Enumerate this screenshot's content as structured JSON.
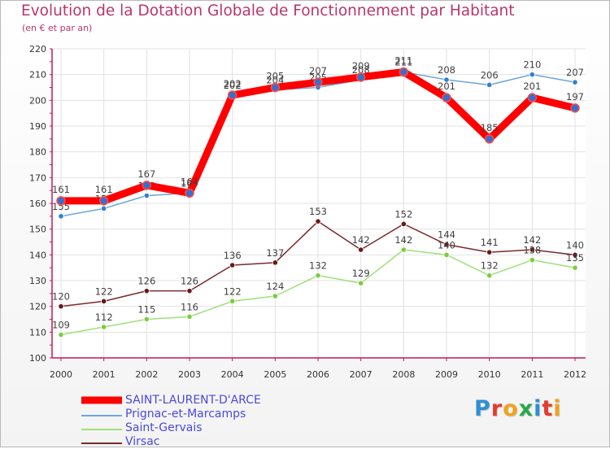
{
  "header": {
    "title": "Evolution de la Dotation Globale de Fonctionnement par Habitant",
    "subtitle": "(en € et par an)"
  },
  "logo": {
    "text": "Proxiti",
    "letters": [
      {
        "ch": "P",
        "color": "#2f8fd3"
      },
      {
        "ch": "r",
        "color": "#e63b2e"
      },
      {
        "ch": "o",
        "color": "#f0a21c"
      },
      {
        "ch": "x",
        "color": "#27a84a"
      },
      {
        "ch": "i",
        "color": "#2f8fd3"
      },
      {
        "ch": "t",
        "color": "#e63b2e"
      },
      {
        "ch": "i",
        "color": "#f0a21c"
      }
    ]
  },
  "colors": {
    "title": "#b9356c",
    "axis": "#c2185b",
    "grid": "#e2e2e2",
    "legend_text": "#4a4adb"
  },
  "chart_data": {
    "type": "line",
    "title": "Evolution de la Dotation Globale de Fonctionnement par Habitant",
    "subtitle": "(en € et par an)",
    "xlabel": "",
    "ylabel": "",
    "x": [
      "2000",
      "2001",
      "2002",
      "2003",
      "2004",
      "2005",
      "2006",
      "2007",
      "2008",
      "2009",
      "2010",
      "2011",
      "2012"
    ],
    "ylim": [
      100,
      220
    ],
    "yticks": [
      100,
      110,
      120,
      130,
      140,
      150,
      160,
      170,
      180,
      190,
      200,
      210,
      220
    ],
    "grid": true,
    "legend_position": "bottom-left",
    "series": [
      {
        "name": "SAINT-LAURENT-D'ARCE",
        "color": "#ff0000",
        "marker": "#3a6fc9",
        "width": "thick",
        "values": [
          161,
          161,
          167,
          164,
          202,
          205,
          207,
          209,
          211,
          201,
          185,
          201,
          197
        ]
      },
      {
        "name": "Prignac-et-Marcamps",
        "color": "#6ea6d8",
        "marker": "#2f80d0",
        "width": "thin",
        "values": [
          155,
          158,
          163,
          164,
          202,
          204,
          205,
          208,
          211,
          208,
          206,
          210,
          207
        ]
      },
      {
        "name": "Saint-Gervais",
        "color": "#9ee07a",
        "marker": "#7ccc3c",
        "width": "thin",
        "values": [
          109,
          112,
          115,
          116,
          122,
          124,
          132,
          129,
          142,
          140,
          132,
          138,
          135
        ]
      },
      {
        "name": "Virsac",
        "color": "#7a2a2a",
        "marker": "#6b1818",
        "width": "thin",
        "values": [
          120,
          122,
          126,
          126,
          136,
          137,
          153,
          142,
          152,
          144,
          141,
          142,
          140
        ]
      }
    ]
  }
}
